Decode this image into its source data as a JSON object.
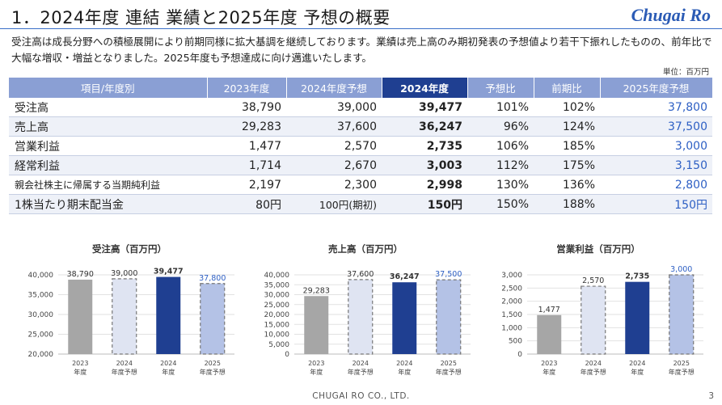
{
  "header": {
    "title": "1．2024年度 連結 業績と2025年度 予想の概要",
    "logo": "Chugai Ro"
  },
  "lead": "受注高は成長分野への積極展開により前期同様に拡大基調を継続しております。業績は売上高のみ期初発表の予想値より若干下振れしたものの、前年比で大幅な増収・増益となりました。2025年度も予想達成に向け邁進いたします。",
  "unit_note": "単位：百万円",
  "table": {
    "headers": [
      "項目/年度別",
      "2023年度",
      "2024年度予想",
      "2024年度",
      "予想比",
      "前期比",
      "2025年度予想"
    ],
    "rows": [
      {
        "label": "受注高",
        "y2023": "38,790",
        "fc2024": "39,000",
        "y2024": "39,477",
        "vs_fc": "101%",
        "yoy": "102%",
        "fc2025": "37,800"
      },
      {
        "label": "売上高",
        "y2023": "29,283",
        "fc2024": "37,600",
        "y2024": "36,247",
        "vs_fc": "96%",
        "yoy": "124%",
        "fc2025": "37,500"
      },
      {
        "label": "営業利益",
        "y2023": "1,477",
        "fc2024": "2,570",
        "y2024": "2,735",
        "vs_fc": "106%",
        "yoy": "185%",
        "fc2025": "3,000"
      },
      {
        "label": "経常利益",
        "y2023": "1,714",
        "fc2024": "2,670",
        "y2024": "3,003",
        "vs_fc": "112%",
        "yoy": "175%",
        "fc2025": "3,150"
      },
      {
        "label": "親会社株主に帰属する当期純利益",
        "y2023": "2,197",
        "fc2024": "2,300",
        "y2024": "2,998",
        "vs_fc": "130%",
        "yoy": "136%",
        "fc2025": "2,800"
      },
      {
        "label": "1株当たり期末配当金",
        "y2023": "80円",
        "fc2024": "100円(期初)",
        "y2024": "150円",
        "vs_fc": "150%",
        "yoy": "188%",
        "fc2025": "150円"
      }
    ]
  },
  "colors": {
    "header_bg": "#8a9fd4",
    "header_highlight": "#1f3f91",
    "bar_2023": "#a6a6a6",
    "bar_2024_forecast": "#dfe4f2",
    "bar_2024": "#1f3f91",
    "bar_2025_forecast": "#b4c2e6",
    "accent_blue": "#2d5fc4"
  },
  "chart_data": [
    {
      "type": "bar",
      "title": "受注高（百万円）",
      "categories": [
        "2023\n年度",
        "2024\n年度予想",
        "2024\n年度",
        "2025\n年度予想"
      ],
      "values": [
        38790,
        39000,
        39477,
        37800
      ],
      "value_labels": [
        "38,790",
        "39,000",
        "39,477",
        "37,800"
      ],
      "ylim": [
        20000,
        40000
      ],
      "yticks": [
        "20,000",
        "25,000",
        "30,000",
        "35,000",
        "40,000"
      ],
      "yticks_values": [
        20000,
        25000,
        30000,
        35000,
        40000
      ]
    },
    {
      "type": "bar",
      "title": "売上高（百万円）",
      "categories": [
        "2023\n年度",
        "2024\n年度予想",
        "2024\n年度",
        "2025\n年度予想"
      ],
      "values": [
        29283,
        37600,
        36247,
        37500
      ],
      "value_labels": [
        "29,283",
        "37,600",
        "36,247",
        "37,500"
      ],
      "ylim": [
        0,
        40000
      ],
      "yticks": [
        "0",
        "5,000",
        "10,000",
        "15,000",
        "20,000",
        "25,000",
        "30,000",
        "35,000",
        "40,000"
      ],
      "yticks_values": [
        0,
        5000,
        10000,
        15000,
        20000,
        25000,
        30000,
        35000,
        40000
      ]
    },
    {
      "type": "bar",
      "title": "営業利益（百万円）",
      "categories": [
        "2023\n年度",
        "2024\n年度予想",
        "2024\n年度",
        "2025\n年度予想"
      ],
      "values": [
        1477,
        2570,
        2735,
        3000
      ],
      "value_labels": [
        "1,477",
        "2,570",
        "2,735",
        "3,000"
      ],
      "ylim": [
        0,
        3000
      ],
      "yticks": [
        "0",
        "500",
        "1,000",
        "1,500",
        "2,000",
        "2,500",
        "3,000"
      ],
      "yticks_values": [
        0,
        500,
        1000,
        1500,
        2000,
        2500,
        3000
      ]
    }
  ],
  "footer": {
    "company": "CHUGAI RO CO., LTD.",
    "page": "3"
  }
}
